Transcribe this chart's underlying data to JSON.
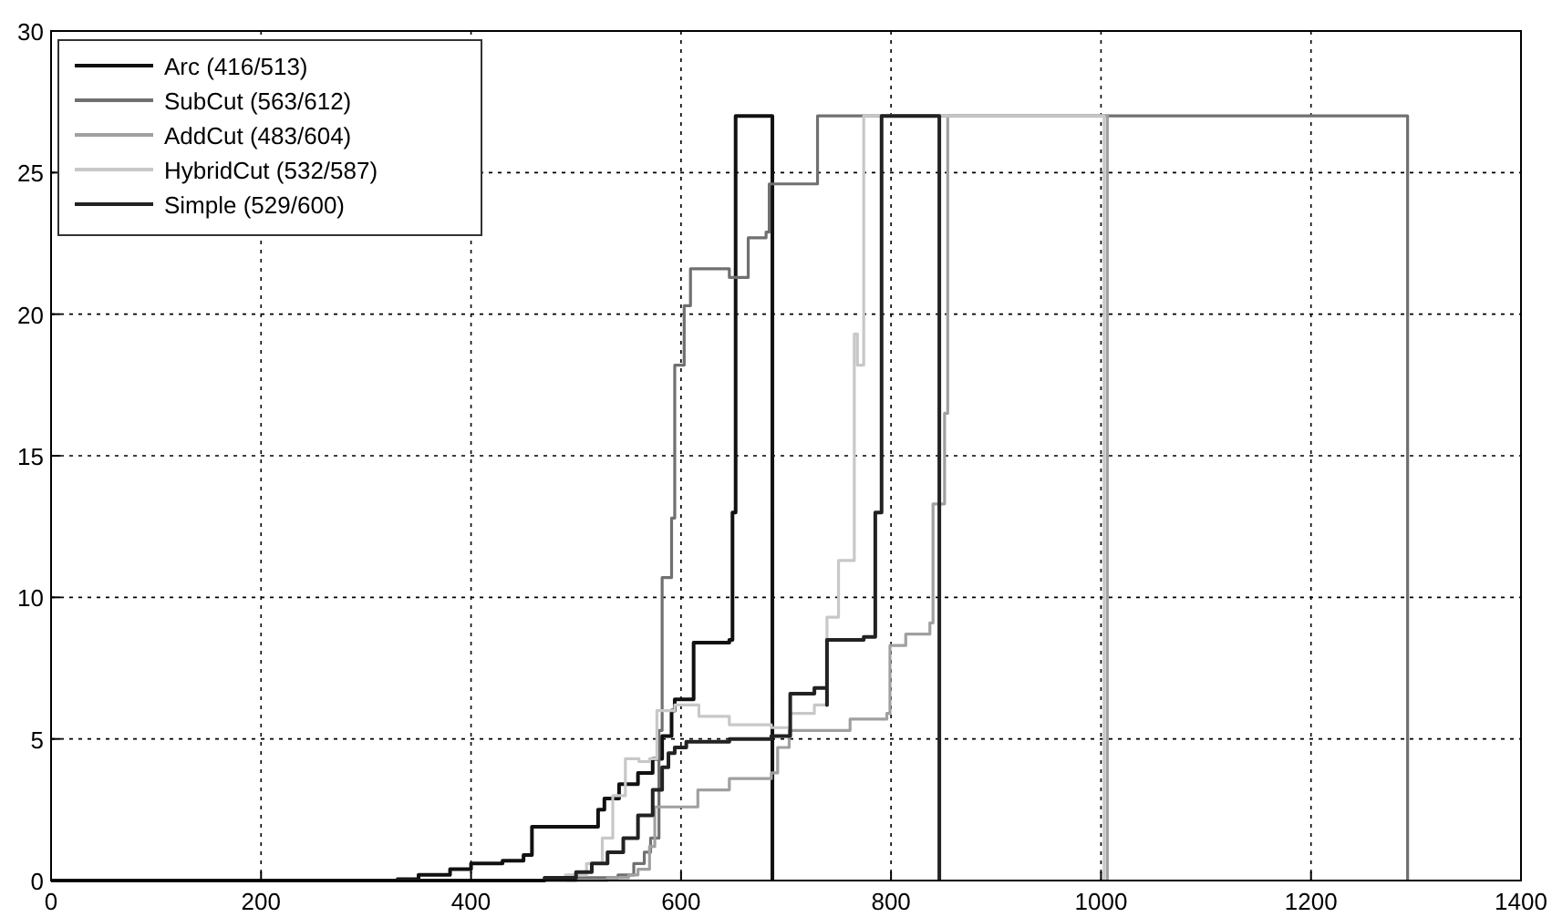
{
  "chart_data": {
    "type": "step",
    "xlim": [
      0,
      1400
    ],
    "ylim": [
      0,
      30
    ],
    "xticks": [
      0,
      200,
      400,
      600,
      800,
      1000,
      1200,
      1400
    ],
    "yticks": [
      0,
      5,
      10,
      15,
      20,
      25,
      30
    ],
    "grid": true,
    "legend": "top left",
    "line_style": "solid",
    "series": [
      {
        "name": "Arc (416/513)",
        "color": "#111111",
        "x": [
          0,
          330,
          350,
          380,
          400,
          430,
          450,
          458,
          521,
          527,
          541,
          559,
          573,
          582,
          591,
          594,
          609,
          612,
          646,
          649,
          652,
          687,
          687
        ],
        "values": [
          0,
          0.05,
          0.2,
          0.4,
          0.6,
          0.7,
          0.9,
          1.9,
          2.5,
          2.9,
          3.4,
          3.8,
          4.3,
          5.1,
          6,
          6.4,
          6.4,
          8.4,
          8.5,
          13,
          27,
          27,
          0
        ]
      },
      {
        "name": "SubCut (563/612)",
        "color": "#707070",
        "x": [
          0,
          480,
          500,
          540,
          555,
          565,
          571,
          579,
          582,
          591,
          594,
          603,
          609,
          646,
          664,
          681,
          684,
          727,
          730,
          1292,
          1292
        ],
        "values": [
          0,
          0,
          0.1,
          0.2,
          0.6,
          1,
          1.5,
          5.3,
          10.7,
          12.8,
          18.2,
          20.3,
          21.6,
          21.3,
          22.7,
          22.9,
          24.6,
          24.6,
          27,
          27,
          0
        ]
      },
      {
        "name": "AddCut (483/604)",
        "color": "#a0a0a0",
        "x": [
          0,
          500,
          530,
          550,
          559,
          570,
          575,
          616,
          646,
          686,
          692,
          703,
          761,
          796,
          799,
          814,
          837,
          840,
          851,
          854,
          1006,
          1006
        ],
        "values": [
          0,
          0,
          0.1,
          0.2,
          0.4,
          1.2,
          2.6,
          3.2,
          3.6,
          3.8,
          4.7,
          5.3,
          5.7,
          5.9,
          8.3,
          8.7,
          9.1,
          13.3,
          16.5,
          27,
          27,
          0
        ]
      },
      {
        "name": "HybridCut (532/587)",
        "color": "#c8c8c8",
        "x": [
          0,
          470,
          490,
          510,
          525,
          535,
          547,
          560,
          570,
          577,
          594,
          617,
          646,
          686,
          704,
          727,
          739,
          750,
          762,
          765,
          768,
          774,
          1003,
          1003
        ],
        "values": [
          0,
          0,
          0.2,
          0.6,
          1.5,
          3,
          4.3,
          4.2,
          4.3,
          6,
          6.2,
          5.8,
          5.5,
          5.4,
          5.9,
          6.2,
          9.3,
          11.3,
          11.3,
          19.3,
          18.2,
          27,
          27,
          0
        ]
      },
      {
        "name": "Simple (529/600)",
        "color": "#222222",
        "x": [
          0,
          450,
          470,
          500,
          515,
          530,
          545,
          559,
          573,
          582,
          588,
          594,
          605,
          646,
          686,
          704,
          704,
          727,
          739,
          739,
          774,
          785,
          791,
          791,
          846,
          846
        ],
        "values": [
          0,
          0,
          0.1,
          0.3,
          0.6,
          1,
          1.5,
          2.3,
          3.2,
          4,
          4.5,
          4.7,
          4.9,
          5,
          5.1,
          5.5,
          6.6,
          6.8,
          6.2,
          8.5,
          8.6,
          13,
          14.7,
          27,
          27,
          0
        ]
      }
    ]
  }
}
